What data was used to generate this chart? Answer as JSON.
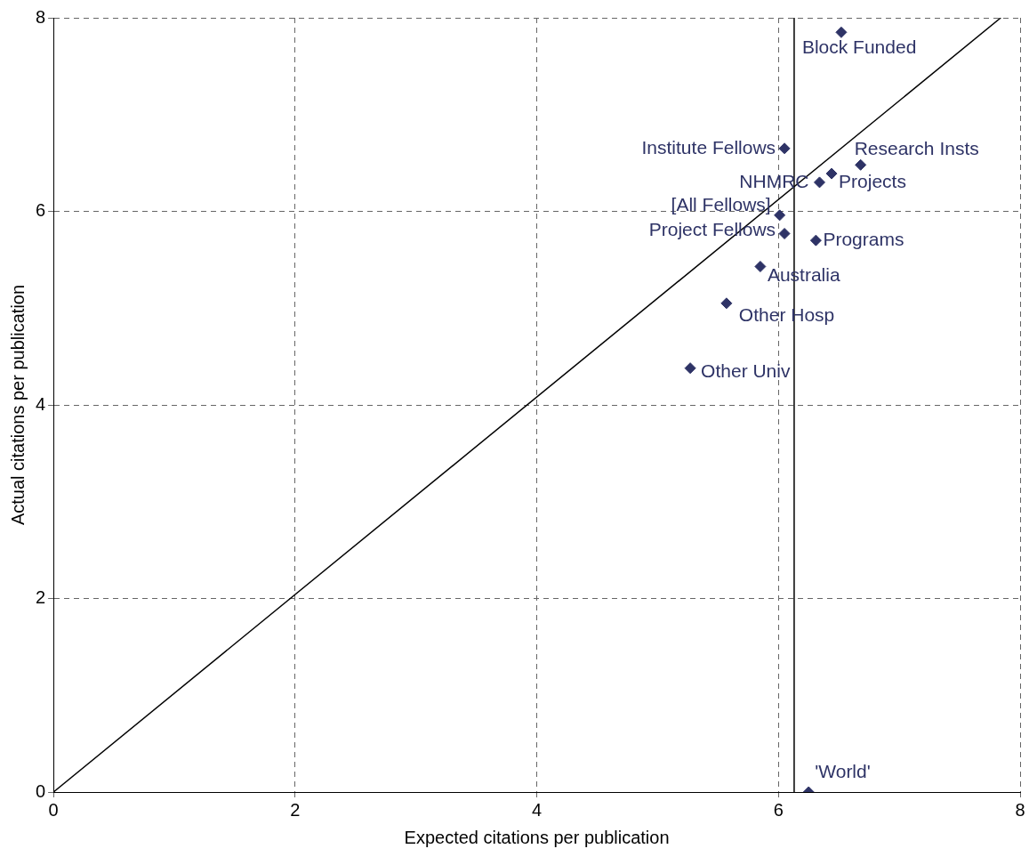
{
  "chart_data": {
    "type": "scatter",
    "xlabel": "Expected citations per publication",
    "ylabel": "Actual citations per publication",
    "xlim": [
      0,
      8
    ],
    "ylim": [
      0,
      8
    ],
    "xticks": [
      0,
      2,
      4,
      6,
      8
    ],
    "yticks": [
      0,
      2,
      4,
      6,
      8
    ],
    "grid": true,
    "legend": false,
    "marker": "diamond",
    "series": [
      {
        "color": "#2e3366",
        "x": [
          6.52,
          6.05,
          6.68,
          6.44,
          6.34,
          6.01,
          6.05,
          6.31,
          5.85,
          5.57,
          5.27,
          6.25
        ],
        "values": [
          7.85,
          6.65,
          6.48,
          6.39,
          6.3,
          5.96,
          5.77,
          5.7,
          5.43,
          5.05,
          4.38,
          0
        ]
      },
      {
        "type": "line",
        "color": "#000000",
        "marker": "none",
        "x": [
          0,
          7.84
        ],
        "values": [
          0,
          8
        ]
      }
    ],
    "ref_lines": [
      {
        "axis": "x",
        "value": 6.13,
        "color": "#000000",
        "line_style": "solid"
      }
    ],
    "annotations": [
      {
        "text": "Block Funded",
        "x": 6.52,
        "y": 7.85
      },
      {
        "text": "Institute Fellows",
        "x": 6.05,
        "y": 6.65
      },
      {
        "text": "Research Insts",
        "x": 6.68,
        "y": 6.48
      },
      {
        "text": "Projects",
        "x": 6.44,
        "y": 6.39
      },
      {
        "text": "NHMRC",
        "x": 6.34,
        "y": 6.3
      },
      {
        "text": "[All Fellows]",
        "x": 6.01,
        "y": 5.96
      },
      {
        "text": "Project Fellows",
        "x": 6.05,
        "y": 5.77
      },
      {
        "text": "Programs",
        "x": 6.31,
        "y": 5.7
      },
      {
        "text": "Australia",
        "x": 5.85,
        "y": 5.43
      },
      {
        "text": "Other Hosp",
        "x": 5.57,
        "y": 5.05
      },
      {
        "text": "Other Univ",
        "x": 5.27,
        "y": 4.38
      },
      {
        "text": "'World'",
        "x": 6.25,
        "y": 0
      }
    ]
  }
}
